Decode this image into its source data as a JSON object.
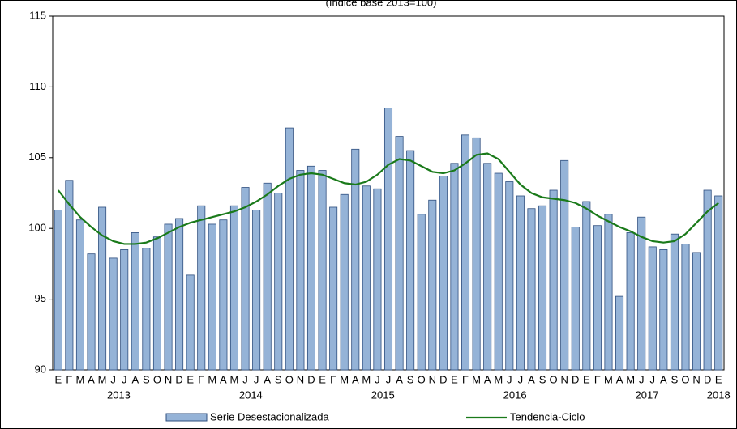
{
  "chart_data": {
    "type": "bar-line",
    "subtitle": "(índice base 2013=100)",
    "categories": [
      "E",
      "F",
      "M",
      "A",
      "M",
      "J",
      "J",
      "A",
      "S",
      "O",
      "N",
      "D",
      "E",
      "F",
      "M",
      "A",
      "M",
      "J",
      "J",
      "A",
      "S",
      "O",
      "N",
      "D",
      "E",
      "F",
      "M",
      "A",
      "M",
      "J",
      "J",
      "A",
      "S",
      "O",
      "N",
      "D",
      "E",
      "F",
      "M",
      "A",
      "M",
      "J",
      "J",
      "A",
      "S",
      "O",
      "N",
      "D",
      "E",
      "F",
      "M",
      "A",
      "M",
      "J",
      "J",
      "A",
      "S",
      "O",
      "N",
      "D",
      "E"
    ],
    "year_labels": [
      "2013",
      "2014",
      "2015",
      "2016",
      "2017",
      "2018"
    ],
    "series": [
      {
        "name": "Serie Desestacionalizada",
        "type": "bar",
        "color": "#95b3d7",
        "values": [
          101.3,
          103.4,
          100.6,
          98.2,
          101.5,
          97.9,
          98.5,
          99.7,
          98.6,
          99.4,
          100.3,
          100.7,
          96.7,
          101.6,
          100.3,
          100.6,
          101.6,
          102.9,
          101.3,
          103.2,
          102.5,
          107.1,
          104.1,
          104.4,
          104.1,
          101.5,
          102.4,
          105.6,
          103.0,
          102.8,
          108.5,
          106.5,
          105.5,
          101.0,
          102.0,
          103.7,
          104.6,
          106.6,
          106.4,
          104.6,
          103.9,
          103.3,
          102.3,
          101.4,
          101.6,
          102.7,
          104.8,
          100.1,
          101.9,
          100.2,
          101.0,
          95.2,
          99.7,
          100.8,
          98.7,
          98.5,
          99.6,
          98.9,
          98.3,
          102.7,
          102.3
        ]
      },
      {
        "name": "Tendencia-Ciclo",
        "type": "line",
        "color": "#1a7a1a",
        "values": [
          102.7,
          101.7,
          100.8,
          100.1,
          99.5,
          99.1,
          98.9,
          98.9,
          99.0,
          99.3,
          99.7,
          100.1,
          100.4,
          100.6,
          100.8,
          101.0,
          101.2,
          101.5,
          101.9,
          102.4,
          103.0,
          103.5,
          103.8,
          103.9,
          103.8,
          103.5,
          103.2,
          103.1,
          103.3,
          103.8,
          104.5,
          104.9,
          104.8,
          104.4,
          104.0,
          103.9,
          104.1,
          104.6,
          105.2,
          105.3,
          104.9,
          104.0,
          103.1,
          102.5,
          102.2,
          102.1,
          102.0,
          101.8,
          101.4,
          100.9,
          100.5,
          100.1,
          99.8,
          99.4,
          99.1,
          99.0,
          99.1,
          99.6,
          100.4,
          101.2,
          101.8
        ]
      }
    ],
    "ylim": [
      90,
      115
    ],
    "yticks": [
      90,
      95,
      100,
      105,
      110,
      115
    ]
  }
}
